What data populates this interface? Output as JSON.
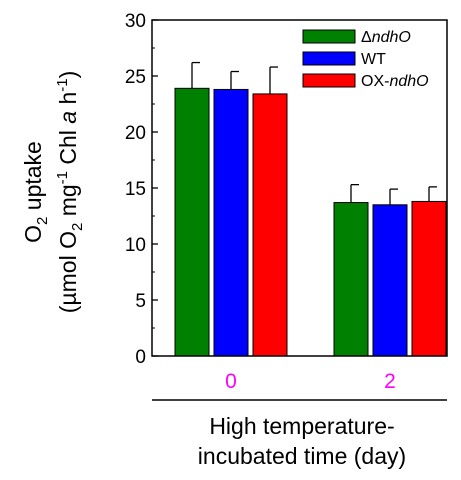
{
  "chart_data": {
    "type": "bar",
    "categories": [
      "0",
      "2"
    ],
    "category_label_color": "#ff00ff",
    "series": [
      {
        "name_prefix": "Δ",
        "name_italic": "ndhO",
        "color": "#008000",
        "values": [
          23.9,
          13.7
        ],
        "errors": [
          2.3,
          1.6
        ]
      },
      {
        "name_prefix": "WT",
        "name_italic": "",
        "color": "#0000ff",
        "values": [
          23.8,
          13.5
        ],
        "errors": [
          1.6,
          1.4
        ]
      },
      {
        "name_prefix": "OX-",
        "name_italic": "ndhO",
        "color": "#ff0000",
        "values": [
          23.4,
          13.8
        ],
        "errors": [
          2.4,
          1.3
        ]
      }
    ],
    "ylim": [
      0,
      30
    ],
    "yticks": [
      0,
      5,
      10,
      15,
      20,
      25,
      30
    ],
    "ylabel": {
      "line1_main": "O",
      "line1_sub": "2",
      "line1_rest": " uptake",
      "line2_a": "(µmol O",
      "line2_sub": "2",
      "line2_b": " mg",
      "line2_sup": "-1",
      "line2_c": " Chl ",
      "line2_italic": "a",
      "line2_d": " h",
      "line2_sup2": "-1",
      "line2_e": ")"
    },
    "xlabel_lines": [
      "High temperature-",
      "incubated time (day)"
    ],
    "legend_position": "top-right",
    "grid": false
  }
}
